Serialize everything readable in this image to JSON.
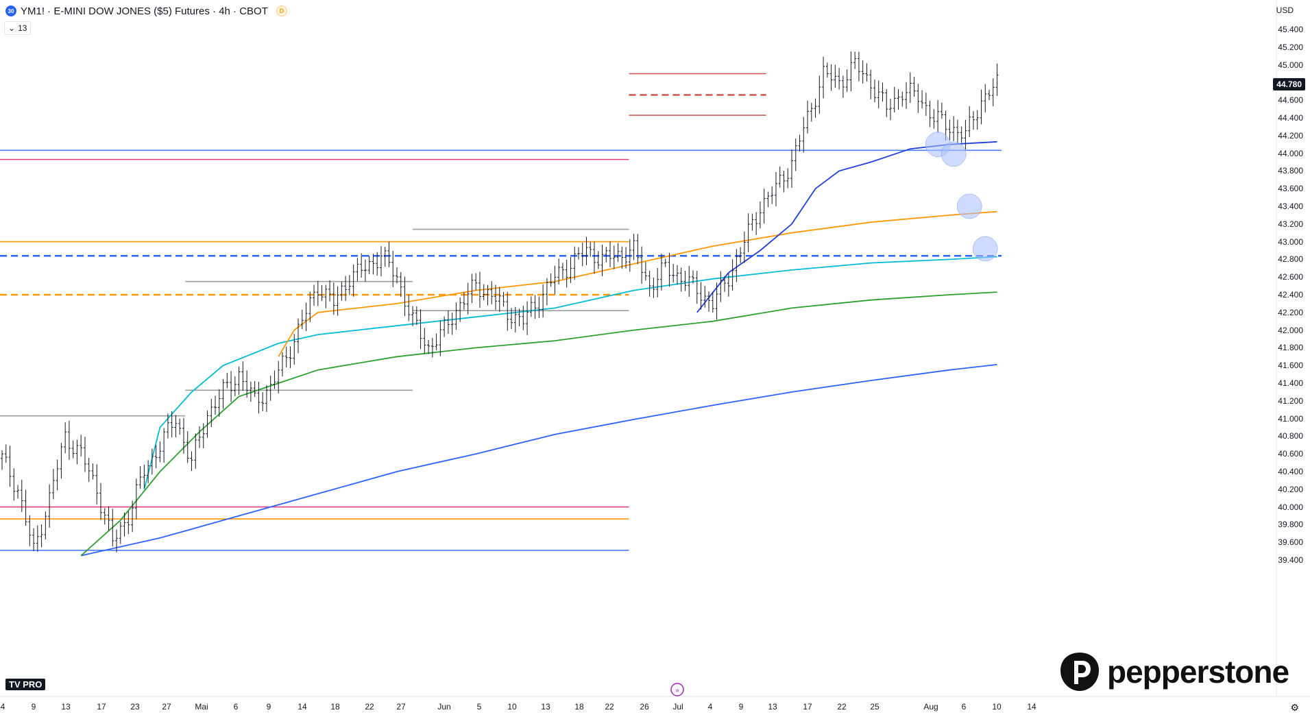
{
  "header": {
    "badge": "30",
    "title": "YM1! · E-MINI DOW JONES ($5) Futures · 4h · CBOT",
    "d_badge": "D",
    "collapse_label": "13",
    "currency": "USD"
  },
  "logos": {
    "broker": "pepperstone",
    "platform": "PRO"
  },
  "chart_data": {
    "type": "line",
    "title": "YM1! · E-MINI DOW JONES ($5) Futures · 4h · CBOT",
    "ylim": [
      39300,
      45700
    ],
    "y_ticks": [
      "45.400",
      "45.200",
      "45.000",
      "44.800",
      "44.600",
      "44.400",
      "44.200",
      "44.000",
      "43.800",
      "43.600",
      "43.400",
      "43.200",
      "43.000",
      "42.800",
      "42.600",
      "42.400",
      "42.200",
      "42.000",
      "41.800",
      "41.600",
      "41.400",
      "41.200",
      "41.000",
      "40.800",
      "40.600",
      "40.400",
      "40.200",
      "40.000",
      "39.800",
      "39.600",
      "39.400"
    ],
    "x_ticks": [
      "4",
      "9",
      "13",
      "17",
      "23",
      "27",
      "Mai",
      "6",
      "9",
      "14",
      "18",
      "22",
      "27",
      "Jun",
      "5",
      "10",
      "13",
      "18",
      "22",
      "26",
      "Jul",
      "4",
      "9",
      "13",
      "17",
      "22",
      "25",
      "Aug",
      "6",
      "10",
      "14"
    ],
    "last_price": {
      "value": 44780,
      "label": "44.780"
    },
    "price_closes": [
      [
        0,
        40550
      ],
      [
        4,
        40200
      ],
      [
        8,
        39500
      ],
      [
        12,
        40100
      ],
      [
        16,
        40800
      ],
      [
        20,
        40600
      ],
      [
        24,
        40200
      ],
      [
        28,
        39600
      ],
      [
        32,
        39900
      ],
      [
        36,
        40400
      ],
      [
        40,
        40700
      ],
      [
        44,
        41000
      ],
      [
        48,
        40500
      ],
      [
        52,
        41050
      ],
      [
        56,
        41300
      ],
      [
        60,
        41500
      ],
      [
        64,
        41200
      ],
      [
        68,
        41350
      ],
      [
        72,
        41700
      ],
      [
        76,
        42100
      ],
      [
        80,
        42500
      ],
      [
        84,
        42300
      ],
      [
        88,
        42600
      ],
      [
        92,
        42700
      ],
      [
        96,
        42850
      ],
      [
        100,
        42600
      ],
      [
        104,
        42100
      ],
      [
        108,
        41800
      ],
      [
        112,
        42000
      ],
      [
        116,
        42300
      ],
      [
        120,
        42500
      ],
      [
        124,
        42400
      ],
      [
        128,
        42200
      ],
      [
        132,
        42100
      ],
      [
        136,
        42350
      ],
      [
        140,
        42600
      ],
      [
        144,
        42750
      ],
      [
        148,
        42900
      ],
      [
        152,
        42800
      ],
      [
        156,
        42850
      ],
      [
        160,
        42900
      ],
      [
        164,
        42500
      ],
      [
        168,
        42700
      ],
      [
        172,
        42600
      ],
      [
        176,
        42450
      ],
      [
        180,
        42300
      ],
      [
        184,
        42600
      ],
      [
        188,
        43000
      ],
      [
        192,
        43400
      ],
      [
        196,
        43600
      ],
      [
        200,
        43900
      ],
      [
        204,
        44400
      ],
      [
        208,
        44900
      ],
      [
        212,
        44800
      ],
      [
        216,
        45000
      ],
      [
        220,
        44800
      ],
      [
        224,
        44500
      ],
      [
        228,
        44700
      ],
      [
        232,
        44650
      ],
      [
        236,
        44400
      ],
      [
        240,
        44300
      ],
      [
        244,
        44200
      ],
      [
        248,
        44600
      ],
      [
        252,
        44780
      ]
    ],
    "series": [
      {
        "color": "#2962ff",
        "values": [
          [
            20,
            39450
          ],
          [
            40,
            39650
          ],
          [
            60,
            39900
          ],
          [
            80,
            40150
          ],
          [
            100,
            40400
          ],
          [
            120,
            40600
          ],
          [
            140,
            40820
          ],
          [
            160,
            40990
          ],
          [
            180,
            41150
          ],
          [
            200,
            41300
          ],
          [
            220,
            41430
          ],
          [
            240,
            41550
          ],
          [
            252,
            41610
          ]
        ]
      },
      {
        "color": "#2ca02c",
        "values": [
          [
            20,
            39450
          ],
          [
            30,
            39850
          ],
          [
            40,
            40400
          ],
          [
            50,
            40850
          ],
          [
            60,
            41250
          ],
          [
            70,
            41400
          ],
          [
            80,
            41550
          ],
          [
            100,
            41700
          ],
          [
            120,
            41800
          ],
          [
            140,
            41880
          ],
          [
            160,
            42000
          ],
          [
            180,
            42100
          ],
          [
            200,
            42250
          ],
          [
            220,
            42340
          ],
          [
            240,
            42400
          ],
          [
            252,
            42430
          ]
        ]
      },
      {
        "color": "#00bcd4",
        "values": [
          [
            36,
            40200
          ],
          [
            40,
            40900
          ],
          [
            48,
            41300
          ],
          [
            56,
            41600
          ],
          [
            70,
            41850
          ],
          [
            80,
            41950
          ],
          [
            100,
            42050
          ],
          [
            120,
            42150
          ],
          [
            140,
            42250
          ],
          [
            160,
            42450
          ],
          [
            180,
            42580
          ],
          [
            200,
            42680
          ],
          [
            220,
            42760
          ],
          [
            240,
            42800
          ],
          [
            252,
            42830
          ]
        ]
      },
      {
        "color": "#ff9800",
        "values": [
          [
            70,
            41700
          ],
          [
            74,
            42000
          ],
          [
            80,
            42200
          ],
          [
            100,
            42300
          ],
          [
            120,
            42450
          ],
          [
            140,
            42550
          ],
          [
            160,
            42750
          ],
          [
            180,
            42950
          ],
          [
            200,
            43100
          ],
          [
            220,
            43220
          ],
          [
            240,
            43300
          ],
          [
            252,
            43340
          ]
        ]
      },
      {
        "color": "#1e40d8",
        "values": [
          [
            176,
            42200
          ],
          [
            184,
            42650
          ],
          [
            192,
            42900
          ],
          [
            200,
            43200
          ],
          [
            206,
            43600
          ],
          [
            212,
            43800
          ],
          [
            220,
            43900
          ],
          [
            230,
            44050
          ],
          [
            240,
            44100
          ],
          [
            252,
            44130
          ]
        ]
      }
    ],
    "levels": [
      {
        "price": 44033,
        "color": "#4f7cff",
        "style": "solid",
        "from": 0,
        "to": 1
      },
      {
        "price": 43930,
        "color": "#e0407a",
        "style": "solid",
        "from": 0,
        "to": 0.628
      },
      {
        "price": 43000,
        "color": "#ff9800",
        "style": "solid",
        "from": 0,
        "to": 0.628
      },
      {
        "price": 42840,
        "color": "#2962ff",
        "style": "dashed",
        "from": 0,
        "to": 1
      },
      {
        "price": 42400,
        "color": "#ff9800",
        "style": "dashed",
        "from": 0,
        "to": 0.628
      },
      {
        "price": 40000,
        "color": "#e0407a",
        "style": "solid",
        "from": 0,
        "to": 0.628
      },
      {
        "price": 39865,
        "color": "#ff9800",
        "style": "solid",
        "from": 0,
        "to": 0.628
      },
      {
        "price": 39510,
        "color": "#4f7cff",
        "style": "solid",
        "from": 0,
        "to": 0.628
      },
      {
        "price": 44900,
        "color": "#d05050",
        "style": "solid",
        "from": 0.628,
        "to": 0.765
      },
      {
        "price": 44660,
        "color": "#d05050",
        "style": "dashed",
        "from": 0.628,
        "to": 0.765
      },
      {
        "price": 44430,
        "color": "#d05050",
        "style": "solid",
        "from": 0.628,
        "to": 0.765
      },
      {
        "price": 43140,
        "color": "#9e9e9e",
        "style": "solid",
        "from": 0.412,
        "to": 0.628
      },
      {
        "price": 42550,
        "color": "#9e9e9e",
        "style": "solid",
        "from": 0.185,
        "to": 0.412
      },
      {
        "price": 42220,
        "color": "#9e9e9e",
        "style": "solid",
        "from": 0.412,
        "to": 0.628
      },
      {
        "price": 41320,
        "color": "#9e9e9e",
        "style": "solid",
        "from": 0.185,
        "to": 0.412
      },
      {
        "price": 41030,
        "color": "#9e9e9e",
        "style": "solid",
        "from": 0,
        "to": 0.185
      }
    ],
    "markers": [
      {
        "x": 237,
        "price": 44100
      },
      {
        "x": 241,
        "price": 43990
      },
      {
        "x": 245,
        "price": 43400
      },
      {
        "x": 249,
        "price": 42920
      }
    ]
  }
}
